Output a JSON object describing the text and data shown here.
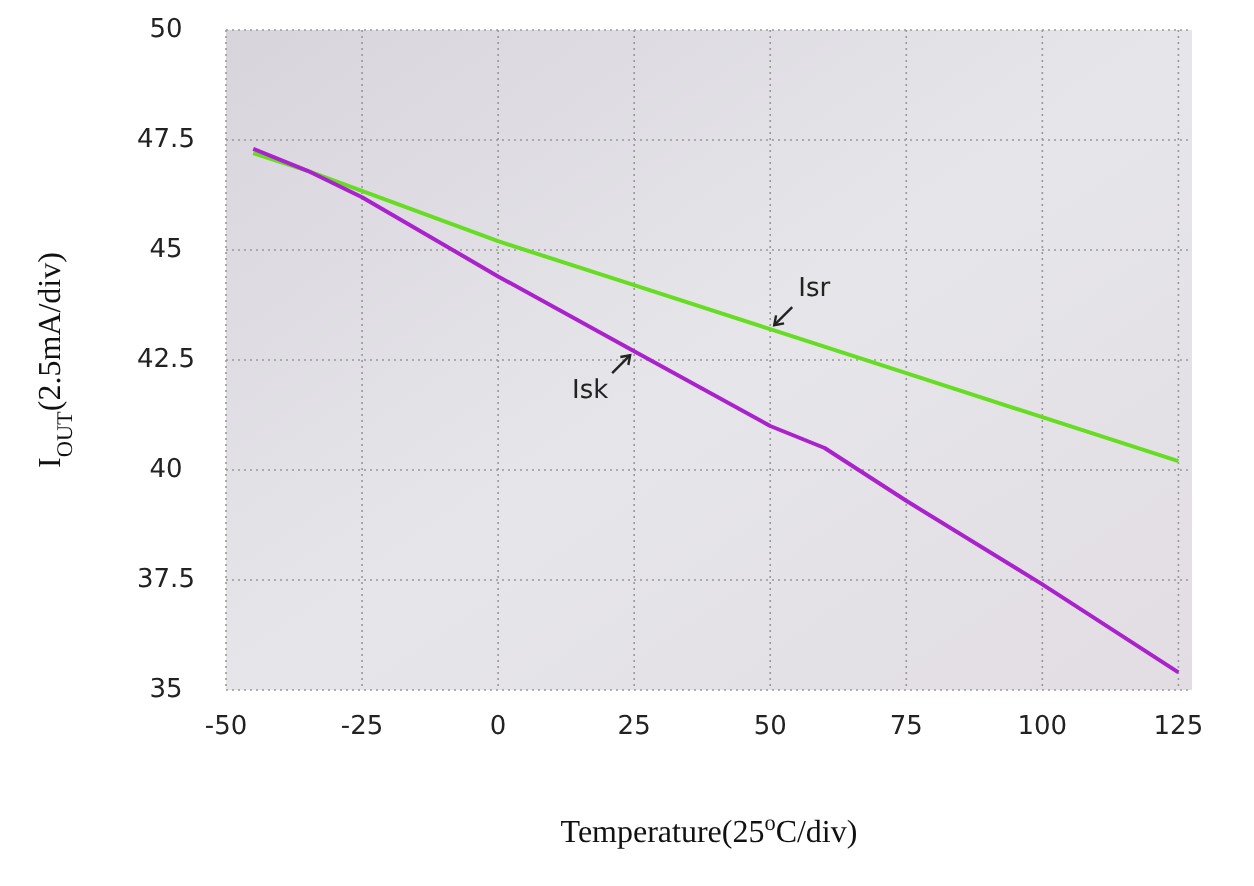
{
  "chart_data": {
    "type": "line",
    "xlabel": "Temperature(25$^{o}$C/div)",
    "ylabel": "I$_{OUT}$(2.5mA/div)",
    "xlim": [
      -50,
      127.5
    ],
    "xticks": [
      -50,
      -25,
      0,
      25,
      50,
      75,
      100,
      125
    ],
    "ylim": [
      35,
      50
    ],
    "yticks": [
      35,
      37.5,
      40,
      42.5,
      45,
      47.5,
      50
    ],
    "grid": true,
    "line_style": "solid",
    "series": [
      {
        "color": "#66dd22",
        "x": [
          -45,
          -35,
          0,
          25,
          50,
          75,
          100,
          125
        ],
        "values": [
          47.2,
          46.8,
          45.2,
          44.2,
          43.2,
          42.2,
          41.2,
          40.2
        ]
      },
      {
        "color": "#aa22cc",
        "x": [
          -45,
          -35,
          -25,
          0,
          25,
          50,
          60,
          75,
          100,
          125
        ],
        "values": [
          47.3,
          46.8,
          46.2,
          44.4,
          42.7,
          41.0,
          40.5,
          39.3,
          37.4,
          35.4
        ]
      }
    ],
    "annotations": [
      {
        "text": "Isr",
        "x": 50,
        "y": 43.2
      },
      {
        "text": "Isk",
        "x": 25,
        "y": 42.7
      }
    ]
  }
}
